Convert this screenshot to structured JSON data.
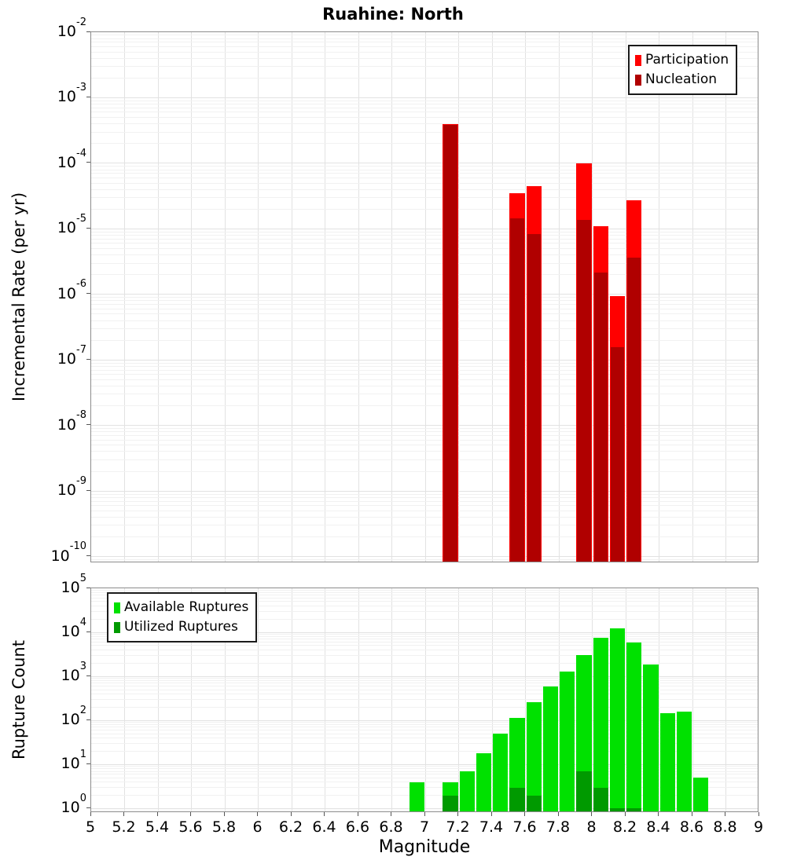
{
  "page": {
    "title": "Ruahine: North"
  },
  "axes": {
    "x_label": "Magnitude",
    "top_y_label": "Incremental Rate (per yr)",
    "bottom_y_label": "Rupture Count",
    "x_tick_labels": [
      "5",
      "5.2",
      "5.4",
      "5.6",
      "5.8",
      "6",
      "6.2",
      "6.4",
      "6.6",
      "6.8",
      "7",
      "7.2",
      "7.4",
      "7.6",
      "7.8",
      "8",
      "8.2",
      "8.4",
      "8.6",
      "8.8",
      "9"
    ],
    "top_y_tick_exponents": [
      -2,
      -3,
      -4,
      -5,
      -6,
      -7,
      -8,
      -9,
      -10
    ],
    "bottom_y_tick_exponents": [
      5,
      4,
      3,
      2,
      1,
      0
    ]
  },
  "legends": {
    "top": [
      {
        "label": "Participation",
        "color": "#ff0000"
      },
      {
        "label": "Nucleation",
        "color": "#b00000"
      }
    ],
    "bottom": [
      {
        "label": "Available Ruptures",
        "color": "#00e100"
      },
      {
        "label": "Utilized Ruptures",
        "color": "#009a00"
      }
    ]
  },
  "colors": {
    "participation": "#ff0000",
    "nucleation": "#b00000",
    "available_ruptures": "#00e100",
    "utilized_ruptures": "#009a00",
    "grid_major": "#e2e2e2",
    "grid_minor": "#f1f1f1",
    "panel_border": "#8c8c8c"
  },
  "chart_data": [
    {
      "type": "bar",
      "panel": "top",
      "title": "Ruahine: North",
      "xlabel": "Magnitude",
      "ylabel": "Incremental Rate (per yr)",
      "yscale": "log",
      "xlim": [
        5,
        9
      ],
      "ylim": [
        1e-10,
        0.01
      ],
      "bin_width": 0.1,
      "grid": true,
      "legend_position": "upper right",
      "categories": [
        7.15,
        7.55,
        7.65,
        7.95,
        8.05,
        8.15,
        8.25
      ],
      "series": [
        {
          "name": "Participation",
          "color": "#ff0000",
          "edge": "#ff0000",
          "values": [
            0.0004,
            3.5e-05,
            4.5e-05,
            0.0001,
            1.1e-05,
            9.5e-07,
            2.7e-05
          ]
        },
        {
          "name": "Nucleation",
          "color": "#b00000",
          "edge": "#ff0000",
          "values": [
            0.0004,
            1.5e-05,
            8.6e-06,
            1.4e-05,
            2.2e-06,
            1.6e-07,
            3.7e-06
          ]
        }
      ]
    },
    {
      "type": "bar",
      "panel": "bottom",
      "title": "",
      "xlabel": "Magnitude",
      "ylabel": "Rupture Count",
      "yscale": "log",
      "xlim": [
        5,
        9
      ],
      "ylim": [
        1,
        100000
      ],
      "bin_width": 0.1,
      "grid": true,
      "legend_position": "upper left",
      "categories": [
        6.95,
        7.15,
        7.25,
        7.35,
        7.45,
        7.55,
        7.65,
        7.75,
        7.85,
        7.95,
        8.05,
        8.15,
        8.25,
        8.35,
        8.45,
        8.55,
        8.65
      ],
      "series": [
        {
          "name": "Available Ruptures",
          "color": "#00e100",
          "edge": null,
          "values": [
            4,
            4,
            7,
            18,
            50,
            114,
            260,
            580,
            1300,
            3000,
            7400,
            12500,
            6000,
            1900,
            145,
            160,
            5
          ]
        },
        {
          "name": "Utilized Ruptures",
          "color": "#009a00",
          "edge": null,
          "values": [
            0,
            2,
            0,
            0,
            0,
            3,
            2,
            0,
            0,
            7,
            3,
            1,
            1,
            0,
            0,
            0,
            0
          ]
        }
      ]
    }
  ]
}
